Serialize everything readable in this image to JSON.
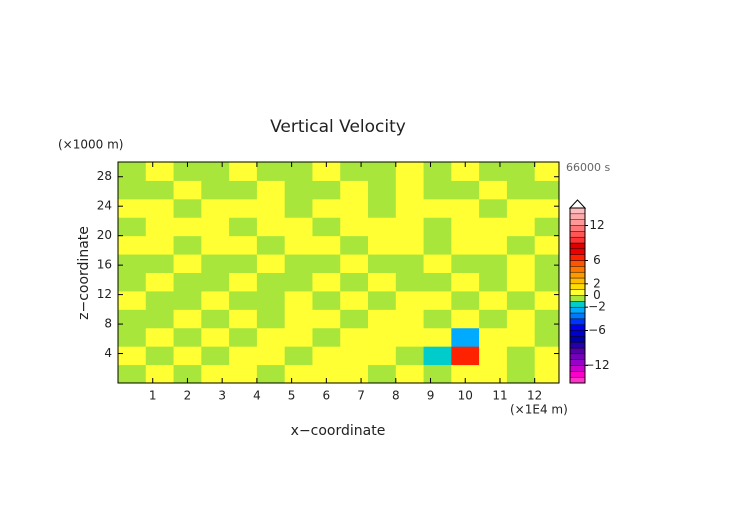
{
  "chart_data": {
    "type": "contour",
    "title": "Vertical Velocity",
    "y_unit": "(×1000 m)",
    "x_unit": "(×1E4 m)",
    "time_label": "66000 s",
    "xlabel": "x−coordinate",
    "ylabel": "z−coordinate",
    "xlim": [
      0,
      12.7
    ],
    "ylim": [
      0,
      30
    ],
    "xticks": [
      1,
      2,
      3,
      4,
      5,
      6,
      7,
      8,
      9,
      10,
      11,
      12
    ],
    "yticks": [
      4,
      8,
      12,
      16,
      20,
      24,
      28
    ],
    "x": [
      0.4,
      1.2,
      2.0,
      2.8,
      3.6,
      4.4,
      5.2,
      6.0,
      6.8,
      7.6,
      8.4,
      9.2,
      10.0,
      10.8,
      11.6,
      12.4
    ],
    "y": [
      1.25,
      3.75,
      6.25,
      8.75,
      11.25,
      13.75,
      16.25,
      18.75,
      21.25,
      23.75,
      26.25,
      28.75
    ],
    "z": [
      [
        -0.5,
        0.5,
        -0.5,
        0.5,
        0.5,
        -0.5,
        0.5,
        0.5,
        0.5,
        -0.5,
        0.5,
        -0.5,
        0.5,
        0.5,
        -0.5,
        0.5
      ],
      [
        0.5,
        -0.5,
        0.5,
        -0.5,
        0.5,
        0.5,
        -0.5,
        0.5,
        0.5,
        0.5,
        -0.5,
        -2,
        6,
        0.5,
        -0.5,
        0.5
      ],
      [
        -0.5,
        0.5,
        -0.5,
        0.5,
        -0.5,
        0.5,
        0.5,
        -0.5,
        0.5,
        0.5,
        0.5,
        0.5,
        -3,
        0.5,
        0.5,
        -0.5
      ],
      [
        -0.5,
        -0.5,
        0.5,
        -0.5,
        0.5,
        -0.5,
        0.5,
        0.5,
        -0.5,
        0.5,
        0.5,
        -0.5,
        0.5,
        -0.5,
        0.5,
        -0.5
      ],
      [
        0.5,
        -0.5,
        -0.5,
        0.5,
        -0.5,
        -0.5,
        0.5,
        -0.5,
        0.5,
        -0.5,
        0.5,
        0.5,
        -0.5,
        0.5,
        -0.5,
        0.5
      ],
      [
        -0.5,
        0.5,
        -0.5,
        -0.5,
        0.5,
        -0.5,
        -0.5,
        0.5,
        -0.5,
        0.5,
        -0.5,
        -0.5,
        0.5,
        -0.5,
        0.5,
        -0.5
      ],
      [
        -0.5,
        -0.5,
        0.5,
        -0.5,
        -0.5,
        0.5,
        -0.5,
        -0.5,
        0.5,
        -0.5,
        -0.5,
        0.5,
        -0.5,
        -0.5,
        0.5,
        -0.5
      ],
      [
        0.5,
        0.5,
        -0.5,
        0.5,
        0.5,
        -0.5,
        0.5,
        0.5,
        -0.5,
        0.5,
        0.5,
        -0.5,
        0.5,
        0.5,
        -0.5,
        0.5
      ],
      [
        -0.5,
        0.5,
        0.5,
        0.5,
        -0.5,
        0.5,
        0.5,
        -0.5,
        0.5,
        0.5,
        0.5,
        -0.5,
        0.5,
        0.5,
        0.5,
        -0.5
      ],
      [
        0.5,
        0.5,
        -0.5,
        0.5,
        0.5,
        0.5,
        -0.5,
        0.5,
        0.5,
        -0.5,
        0.5,
        0.5,
        0.5,
        -0.5,
        0.5,
        0.5
      ],
      [
        -0.5,
        -0.5,
        0.5,
        -0.5,
        -0.5,
        0.5,
        -0.5,
        -0.5,
        0.5,
        -0.5,
        0.5,
        -0.5,
        -0.5,
        0.5,
        -0.5,
        -0.5
      ],
      [
        -0.5,
        0.5,
        -0.5,
        -0.5,
        0.5,
        -0.5,
        -0.5,
        0.5,
        -0.5,
        -0.5,
        0.5,
        -0.5,
        0.5,
        -0.5,
        -0.5,
        0.5
      ]
    ],
    "levels": [
      -15,
      -14,
      -13,
      -12,
      -11,
      -10,
      -9,
      -8,
      -7,
      -6,
      -5,
      -4,
      -3,
      -2,
      -1,
      0,
      1,
      2,
      3,
      4,
      5,
      6,
      7,
      8,
      9,
      10,
      11,
      12,
      13,
      14,
      15
    ],
    "colors": [
      "#ff33cc",
      "#ff00cc",
      "#cc00cc",
      "#9900cc",
      "#7700bb",
      "#5500aa",
      "#2200aa",
      "#0000aa",
      "#0000cc",
      "#0000ee",
      "#0033ff",
      "#0077ff",
      "#00aaff",
      "#00cccc",
      "#a8e63c",
      "#ffff33",
      "#ffdd00",
      "#ffbb00",
      "#ff9900",
      "#ff7700",
      "#ff5500",
      "#ff2200",
      "#ee0000",
      "#dd0000",
      "#ff3333",
      "#ff5555",
      "#ff7777",
      "#ff9999",
      "#ffaaaa",
      "#ffbbbb"
    ],
    "cbar_ticks": [
      12,
      6,
      2,
      0,
      {
        "value": -2,
        "label": "−2"
      },
      {
        "value": -6,
        "label": "−6"
      },
      {
        "value": -12,
        "label": "−12"
      }
    ]
  }
}
